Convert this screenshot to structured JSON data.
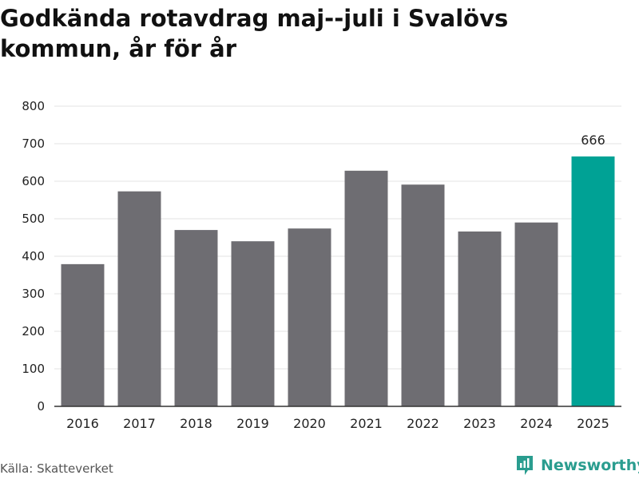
{
  "chart_data": {
    "type": "bar",
    "title": "Godkända rotavdrag maj--juli i Svalövs kommun, år för år",
    "categories": [
      "2016",
      "2017",
      "2018",
      "2019",
      "2020",
      "2021",
      "2022",
      "2023",
      "2024",
      "2025"
    ],
    "values": [
      379,
      573,
      470,
      440,
      474,
      628,
      591,
      466,
      490,
      666
    ],
    "data_labels": {
      "2025": "666"
    },
    "ylim": [
      0,
      800
    ],
    "yticks": [
      0,
      100,
      200,
      300,
      400,
      500,
      600,
      700,
      800
    ],
    "grid": true,
    "colors": {
      "bar": "#6e6d72",
      "highlight": "#00a295",
      "grid": "#e3e3e3",
      "axis": "#333333"
    },
    "highlight_category": "2025"
  },
  "source": "Källa: Skatteverket",
  "brand": {
    "name": "Newsworthy",
    "icon": "newsworthy-logo",
    "color": "#2a9d8f"
  }
}
